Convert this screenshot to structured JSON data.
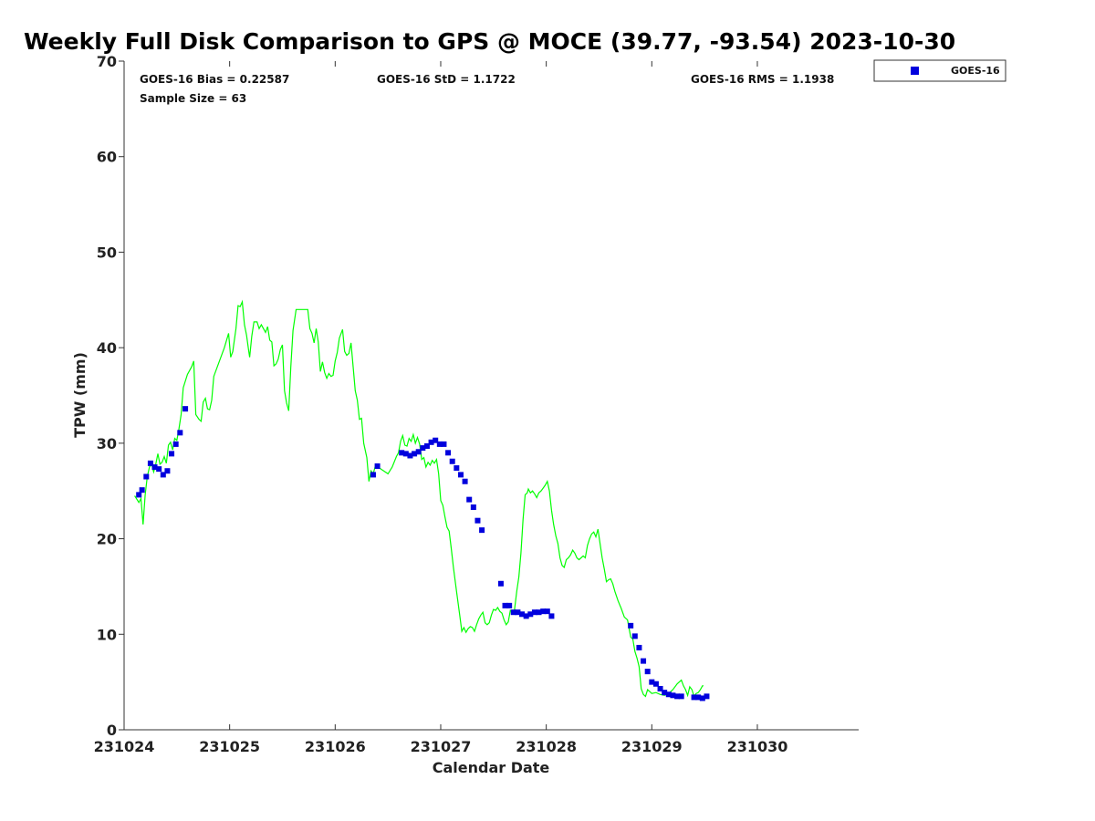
{
  "chart_data": {
    "type": "scatter",
    "title": "Weekly Full Disk Comparison to GPS @ MOCE (39.77, -93.54) 2023-10-30",
    "xlabel": "Calendar Date",
    "ylabel": "TPW (mm)",
    "xlim": [
      0,
      6.96
    ],
    "ylim": [
      0,
      70
    ],
    "x_ticks": [
      0,
      1,
      2,
      3,
      4,
      5,
      6
    ],
    "x_tick_labels": [
      "231024",
      "231025",
      "231026",
      "231027",
      "231028",
      "231029",
      "231030"
    ],
    "y_ticks": [
      0,
      10,
      20,
      30,
      40,
      50,
      60,
      70
    ],
    "y_tick_labels": [
      "0",
      "10",
      "20",
      "30",
      "40",
      "50",
      "60",
      "70"
    ],
    "stats": {
      "bias": "GOES-16 Bias = 0.22587",
      "std": "GOES-16 StD = 1.1722",
      "rms": "GOES-16 RMS = 1.1938",
      "sample": "Sample Size = 63"
    },
    "legend": {
      "placement": "top-right-outside",
      "label": "GOES-16"
    },
    "series": [
      {
        "name": "GPS",
        "kind": "line",
        "color": "#00ff00",
        "points": [
          [
            0.1,
            24.5
          ],
          [
            0.14,
            23.8
          ],
          [
            0.16,
            24.2
          ],
          [
            0.18,
            21.5
          ],
          [
            0.2,
            24.6
          ],
          [
            0.22,
            26.5
          ],
          [
            0.24,
            27.5
          ],
          [
            0.26,
            27.8
          ],
          [
            0.28,
            27.0
          ],
          [
            0.3,
            27.8
          ],
          [
            0.32,
            28.9
          ],
          [
            0.34,
            27.8
          ],
          [
            0.36,
            28.0
          ],
          [
            0.38,
            28.6
          ],
          [
            0.4,
            27.9
          ],
          [
            0.42,
            29.8
          ],
          [
            0.44,
            30.1
          ],
          [
            0.46,
            29.3
          ],
          [
            0.48,
            30.5
          ],
          [
            0.5,
            30.3
          ],
          [
            0.52,
            31.5
          ],
          [
            0.54,
            33.0
          ],
          [
            0.56,
            35.8
          ],
          [
            0.6,
            37.2
          ],
          [
            0.64,
            38.0
          ],
          [
            0.66,
            38.6
          ],
          [
            0.68,
            33.0
          ],
          [
            0.71,
            32.5
          ],
          [
            0.73,
            32.3
          ],
          [
            0.75,
            34.3
          ],
          [
            0.77,
            34.7
          ],
          [
            0.79,
            33.6
          ],
          [
            0.81,
            33.5
          ],
          [
            0.83,
            34.5
          ],
          [
            0.85,
            37.0
          ],
          [
            0.9,
            38.5
          ],
          [
            0.95,
            40.0
          ],
          [
            0.99,
            41.5
          ],
          [
            1.01,
            39.0
          ],
          [
            1.03,
            39.6
          ],
          [
            1.06,
            42.0
          ],
          [
            1.08,
            44.4
          ],
          [
            1.1,
            44.3
          ],
          [
            1.12,
            44.8
          ],
          [
            1.14,
            42.4
          ],
          [
            1.16,
            41.3
          ],
          [
            1.18,
            39.7
          ],
          [
            1.19,
            39.0
          ],
          [
            1.21,
            41.2
          ],
          [
            1.23,
            42.7
          ],
          [
            1.26,
            42.7
          ],
          [
            1.28,
            42.0
          ],
          [
            1.3,
            42.4
          ],
          [
            1.32,
            42.0
          ],
          [
            1.34,
            41.6
          ],
          [
            1.36,
            42.2
          ],
          [
            1.38,
            40.8
          ],
          [
            1.4,
            40.6
          ],
          [
            1.42,
            38.1
          ],
          [
            1.44,
            38.3
          ],
          [
            1.46,
            38.8
          ],
          [
            1.48,
            39.8
          ],
          [
            1.5,
            40.3
          ],
          [
            1.52,
            35.5
          ],
          [
            1.54,
            34.2
          ],
          [
            1.56,
            33.4
          ],
          [
            1.58,
            38.0
          ],
          [
            1.6,
            41.8
          ],
          [
            1.63,
            44.0
          ],
          [
            1.66,
            44.0
          ],
          [
            1.7,
            44.0
          ],
          [
            1.74,
            44.0
          ],
          [
            1.76,
            42.0
          ],
          [
            1.78,
            41.5
          ],
          [
            1.8,
            40.5
          ],
          [
            1.82,
            42.0
          ],
          [
            1.84,
            40.6
          ],
          [
            1.86,
            37.5
          ],
          [
            1.88,
            38.5
          ],
          [
            1.9,
            37.4
          ],
          [
            1.92,
            36.8
          ],
          [
            1.94,
            37.3
          ],
          [
            1.96,
            37.0
          ],
          [
            1.98,
            37.1
          ],
          [
            2.0,
            38.6
          ],
          [
            2.02,
            39.5
          ],
          [
            2.04,
            41.0
          ],
          [
            2.07,
            41.9
          ],
          [
            2.09,
            39.6
          ],
          [
            2.11,
            39.2
          ],
          [
            2.13,
            39.4
          ],
          [
            2.15,
            40.5
          ],
          [
            2.17,
            38.0
          ],
          [
            2.19,
            35.5
          ],
          [
            2.21,
            34.5
          ],
          [
            2.23,
            32.5
          ],
          [
            2.25,
            32.6
          ],
          [
            2.27,
            30.0
          ],
          [
            2.3,
            28.5
          ],
          [
            2.32,
            26.0
          ],
          [
            2.34,
            27.1
          ],
          [
            2.36,
            26.8
          ],
          [
            2.38,
            27.6
          ],
          [
            2.42,
            27.4
          ],
          [
            2.5,
            26.8
          ],
          [
            2.54,
            27.5
          ],
          [
            2.58,
            28.6
          ],
          [
            2.6,
            29.0
          ],
          [
            2.62,
            30.2
          ],
          [
            2.64,
            30.8
          ],
          [
            2.66,
            29.8
          ],
          [
            2.68,
            29.7
          ],
          [
            2.7,
            30.5
          ],
          [
            2.72,
            30.2
          ],
          [
            2.74,
            30.9
          ],
          [
            2.76,
            30.0
          ],
          [
            2.78,
            30.6
          ],
          [
            2.8,
            29.9
          ],
          [
            2.82,
            28.3
          ],
          [
            2.84,
            28.5
          ],
          [
            2.86,
            27.5
          ],
          [
            2.88,
            28.0
          ],
          [
            2.9,
            27.7
          ],
          [
            2.92,
            28.2
          ],
          [
            2.94,
            27.9
          ],
          [
            2.96,
            28.3
          ],
          [
            2.98,
            26.8
          ],
          [
            3.0,
            24.0
          ],
          [
            3.02,
            23.5
          ],
          [
            3.04,
            22.3
          ],
          [
            3.06,
            21.2
          ],
          [
            3.08,
            20.8
          ],
          [
            3.1,
            19.0
          ],
          [
            3.12,
            17.0
          ],
          [
            3.15,
            14.5
          ],
          [
            3.18,
            12.0
          ],
          [
            3.2,
            10.3
          ],
          [
            3.22,
            10.7
          ],
          [
            3.24,
            10.2
          ],
          [
            3.26,
            10.6
          ],
          [
            3.28,
            10.8
          ],
          [
            3.3,
            10.7
          ],
          [
            3.32,
            10.3
          ],
          [
            3.34,
            11.0
          ],
          [
            3.36,
            11.6
          ],
          [
            3.38,
            12.0
          ],
          [
            3.4,
            12.3
          ],
          [
            3.42,
            11.2
          ],
          [
            3.44,
            11.0
          ],
          [
            3.46,
            11.2
          ],
          [
            3.48,
            12.0
          ],
          [
            3.5,
            12.6
          ],
          [
            3.52,
            12.5
          ],
          [
            3.54,
            12.8
          ],
          [
            3.56,
            12.4
          ],
          [
            3.58,
            12.2
          ],
          [
            3.6,
            11.5
          ],
          [
            3.62,
            11.0
          ],
          [
            3.64,
            11.3
          ],
          [
            3.66,
            12.5
          ],
          [
            3.68,
            12.3
          ],
          [
            3.7,
            12.6
          ],
          [
            3.72,
            14.5
          ],
          [
            3.74,
            16.0
          ],
          [
            3.76,
            18.5
          ],
          [
            3.78,
            22.0
          ],
          [
            3.8,
            24.6
          ],
          [
            3.82,
            24.8
          ],
          [
            3.83,
            25.2
          ],
          [
            3.85,
            24.8
          ],
          [
            3.87,
            25.0
          ],
          [
            3.89,
            24.7
          ],
          [
            3.91,
            24.3
          ],
          [
            3.93,
            24.8
          ],
          [
            3.95,
            25.0
          ],
          [
            3.97,
            25.3
          ],
          [
            3.99,
            25.6
          ],
          [
            4.01,
            26.0
          ],
          [
            4.03,
            25.0
          ],
          [
            4.05,
            23.0
          ],
          [
            4.07,
            21.5
          ],
          [
            4.09,
            20.3
          ],
          [
            4.11,
            19.5
          ],
          [
            4.13,
            18.0
          ],
          [
            4.15,
            17.2
          ],
          [
            4.17,
            17.0
          ],
          [
            4.19,
            17.8
          ],
          [
            4.21,
            18.0
          ],
          [
            4.23,
            18.3
          ],
          [
            4.25,
            18.8
          ],
          [
            4.27,
            18.5
          ],
          [
            4.29,
            18.0
          ],
          [
            4.31,
            17.8
          ],
          [
            4.33,
            18.0
          ],
          [
            4.35,
            18.2
          ],
          [
            4.37,
            18.0
          ],
          [
            4.39,
            19.3
          ],
          [
            4.41,
            20.0
          ],
          [
            4.43,
            20.5
          ],
          [
            4.45,
            20.7
          ],
          [
            4.47,
            20.2
          ],
          [
            4.49,
            21.0
          ],
          [
            4.51,
            19.5
          ],
          [
            4.53,
            18.0
          ],
          [
            4.55,
            16.8
          ],
          [
            4.57,
            15.5
          ],
          [
            4.59,
            15.7
          ],
          [
            4.61,
            15.8
          ],
          [
            4.63,
            15.3
          ],
          [
            4.65,
            14.5
          ],
          [
            4.68,
            13.5
          ],
          [
            4.71,
            12.7
          ],
          [
            4.74,
            11.8
          ],
          [
            4.77,
            11.5
          ],
          [
            4.8,
            9.7
          ],
          [
            4.82,
            9.5
          ],
          [
            4.84,
            8.2
          ],
          [
            4.86,
            7.5
          ],
          [
            4.88,
            6.6
          ],
          [
            4.9,
            4.3
          ],
          [
            4.92,
            3.7
          ],
          [
            4.94,
            3.5
          ],
          [
            4.96,
            4.2
          ],
          [
            4.98,
            4.0
          ],
          [
            5.0,
            3.8
          ],
          [
            5.04,
            3.9
          ],
          [
            5.08,
            3.7
          ],
          [
            5.12,
            3.6
          ],
          [
            5.16,
            3.8
          ],
          [
            5.2,
            4.2
          ],
          [
            5.24,
            4.8
          ],
          [
            5.28,
            5.2
          ],
          [
            5.3,
            4.6
          ],
          [
            5.32,
            4.2
          ],
          [
            5.34,
            3.6
          ],
          [
            5.36,
            4.5
          ],
          [
            5.38,
            4.2
          ],
          [
            5.4,
            3.5
          ],
          [
            5.42,
            3.8
          ],
          [
            5.44,
            3.9
          ],
          [
            5.46,
            4.2
          ],
          [
            5.48,
            4.6
          ],
          [
            5.49,
            4.6
          ]
        ]
      },
      {
        "name": "GOES-16",
        "kind": "scatter",
        "color": "#0000dd",
        "points": [
          [
            0.14,
            24.6
          ],
          [
            0.17,
            25.1
          ],
          [
            0.21,
            26.5
          ],
          [
            0.25,
            27.9
          ],
          [
            0.29,
            27.5
          ],
          [
            0.33,
            27.3
          ],
          [
            0.37,
            26.7
          ],
          [
            0.41,
            27.1
          ],
          [
            0.45,
            28.9
          ],
          [
            0.49,
            29.9
          ],
          [
            0.53,
            31.1
          ],
          [
            0.58,
            33.6
          ],
          [
            2.36,
            26.7
          ],
          [
            2.4,
            27.6
          ],
          [
            2.63,
            29.0
          ],
          [
            2.67,
            28.9
          ],
          [
            2.71,
            28.7
          ],
          [
            2.75,
            28.9
          ],
          [
            2.79,
            29.1
          ],
          [
            2.83,
            29.5
          ],
          [
            2.87,
            29.7
          ],
          [
            2.91,
            30.1
          ],
          [
            2.95,
            30.3
          ],
          [
            2.99,
            29.9
          ],
          [
            3.03,
            29.9
          ],
          [
            3.07,
            29.0
          ],
          [
            3.11,
            28.1
          ],
          [
            3.15,
            27.4
          ],
          [
            3.19,
            26.7
          ],
          [
            3.23,
            26.0
          ],
          [
            3.27,
            24.1
          ],
          [
            3.31,
            23.3
          ],
          [
            3.35,
            21.9
          ],
          [
            3.39,
            20.9
          ],
          [
            3.57,
            15.3
          ],
          [
            3.61,
            13.0
          ],
          [
            3.65,
            13.0
          ],
          [
            3.69,
            12.3
          ],
          [
            3.73,
            12.3
          ],
          [
            3.77,
            12.1
          ],
          [
            3.81,
            11.9
          ],
          [
            3.85,
            12.1
          ],
          [
            3.89,
            12.3
          ],
          [
            3.93,
            12.3
          ],
          [
            3.97,
            12.4
          ],
          [
            4.01,
            12.4
          ],
          [
            4.05,
            11.9
          ],
          [
            4.8,
            10.9
          ],
          [
            4.84,
            9.8
          ],
          [
            4.88,
            8.6
          ],
          [
            4.92,
            7.2
          ],
          [
            4.96,
            6.1
          ],
          [
            5.0,
            5.0
          ],
          [
            5.04,
            4.8
          ],
          [
            5.08,
            4.3
          ],
          [
            5.12,
            3.9
          ],
          [
            5.16,
            3.7
          ],
          [
            5.2,
            3.6
          ],
          [
            5.24,
            3.5
          ],
          [
            5.28,
            3.5
          ],
          [
            5.4,
            3.4
          ],
          [
            5.44,
            3.4
          ],
          [
            5.48,
            3.3
          ],
          [
            5.52,
            3.5
          ]
        ]
      }
    ]
  }
}
